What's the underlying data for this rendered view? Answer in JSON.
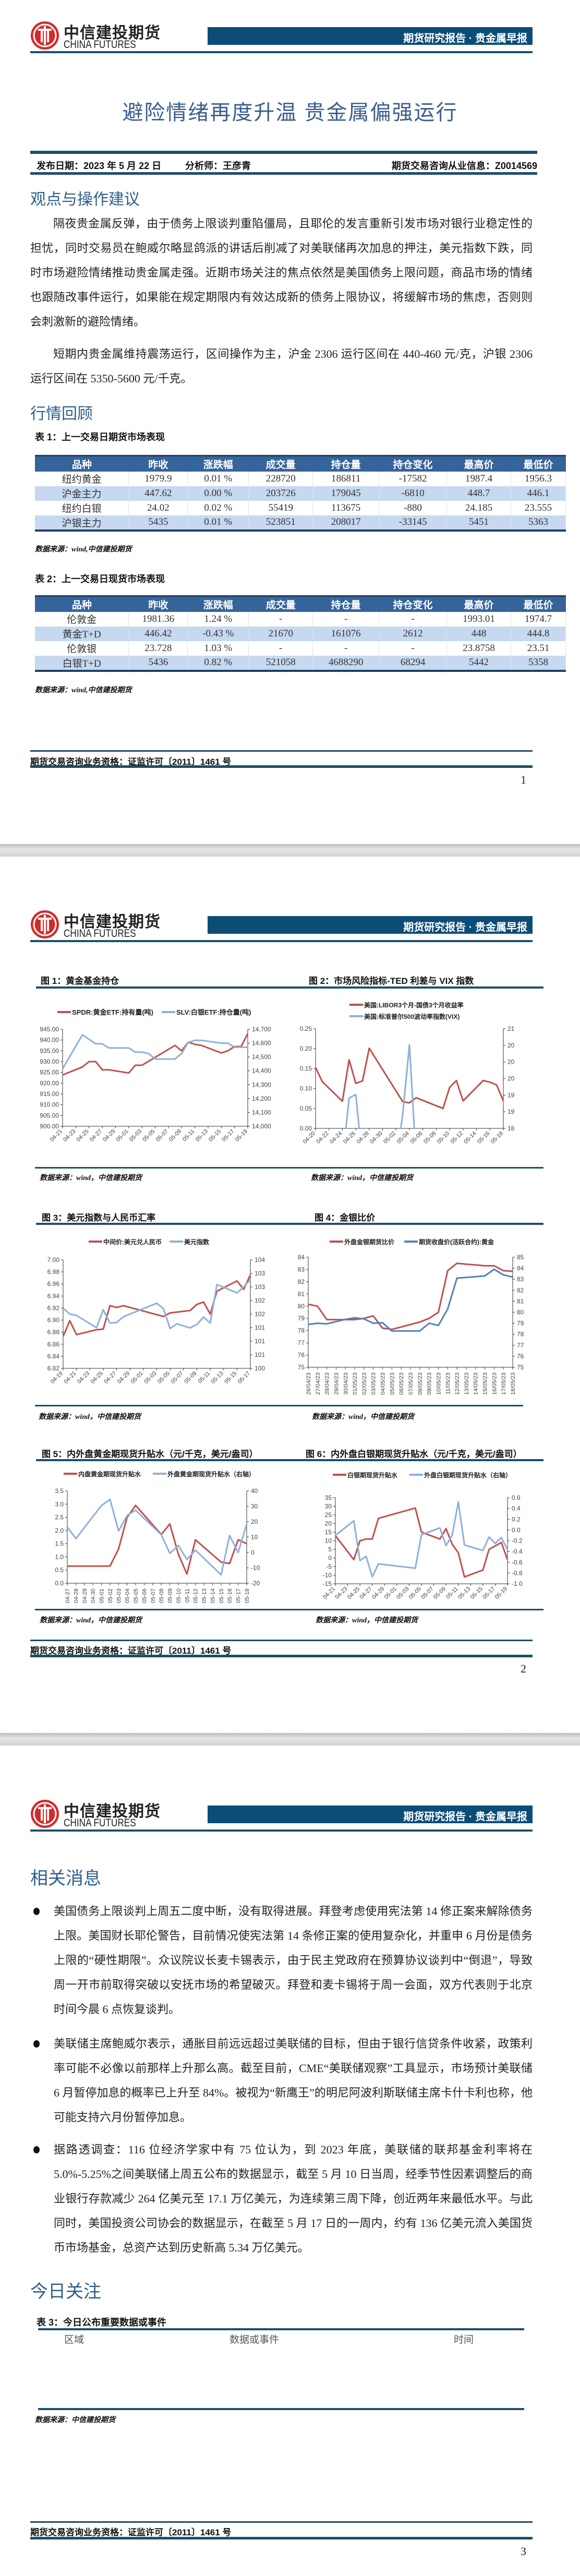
{
  "header": {
    "brand_cn": "中信建投期货",
    "brand_en": "CHINA FUTURES",
    "report_type": "期货研究报告 · 贵金属早报"
  },
  "report": {
    "title": "避险情绪再度升温  贵金属偏强运行",
    "publish_date": "发布日期：2023 年 5 月 22 日",
    "analyst": "分析师：王彦青",
    "license": "期货交易咨询从业信息：Z0014569"
  },
  "view": {
    "heading": "观点与操作建议",
    "paragraphs": [
      "隔夜贵金属反弹，由于债务上限谈判重陷僵局，且耶伦的发言重新引发市场对银行业稳定性的担忧，同时交易员在鲍威尔略显鸽派的讲话后削减了对美联储再次加息的押注，美元指数下跌，同时市场避险情绪推动贵金属走强。近期市场关注的焦点依然是美国债务上限问题，商品市场的情绪也跟随改事件运行，如果能在规定期限内有效达成新的债务上限协议，将缓解市场的焦虑，否则则会刺激新的避险情绪。",
      "短期内贵金属维持震荡运行，区间操作为主，沪金 2306 运行区间在 440-460 元/克，沪银 2306 运行区间在 5350-5600 元/千克。"
    ]
  },
  "market": {
    "heading": "行情回顾",
    "table1": {
      "caption": "表 1：上一交易日期货市场表现",
      "columns": [
        "品种",
        "昨收",
        "涨跌幅",
        "成交量",
        "持仓量",
        "持仓变化",
        "最高价",
        "最低价"
      ],
      "rows": [
        [
          "纽约黄金",
          "1979.9",
          "0.01 %",
          "228720",
          "186811",
          "-17582",
          "1987.4",
          "1956.3"
        ],
        [
          "沪金主力",
          "447.62",
          "0.00 %",
          "203726",
          "179045",
          "-6810",
          "448.7",
          "446.1"
        ],
        [
          "纽约白银",
          "24.02",
          "0.02 %",
          "55419",
          "113675",
          "-880",
          "24.185",
          "23.555"
        ],
        [
          "沪银主力",
          "5435",
          "0.01 %",
          "523851",
          "208017",
          "-33145",
          "5451",
          "5363"
        ]
      ],
      "source": "数据来源：wind,中信建投期货"
    },
    "table2": {
      "caption": "表 2：上一交易日现货市场表现",
      "columns": [
        "品种",
        "昨收",
        "涨跌幅",
        "成交量",
        "持仓量",
        "持仓变化",
        "最高价",
        "最低价"
      ],
      "rows": [
        [
          "伦敦金",
          "1981.36",
          "1.24 %",
          "-",
          "-",
          "-",
          "1993.01",
          "1974.7"
        ],
        [
          "黄金T+D",
          "446.42",
          "-0.43 %",
          "21670",
          "161076",
          "2612",
          "448",
          "444.8"
        ],
        [
          "伦敦银",
          "23.728",
          "1.03 %",
          "-",
          "-",
          "-",
          "23.8758",
          "23.51"
        ],
        [
          "白银T+D",
          "5436",
          "0.82 %",
          "521058",
          "4688290",
          "68294",
          "5442",
          "5358"
        ]
      ],
      "source": "数据来源：wind,中信建投期货"
    }
  },
  "footer": {
    "qualification": "期货交易咨询业务资格：证监许可〔2011〕1461 号",
    "pages": [
      "1",
      "2",
      "3"
    ]
  },
  "figures_source": "数据来源：wind，中信建投期货",
  "colors": {
    "red": "#c0504d",
    "blue": "#8eb0da",
    "blue_dark": "#4f81bd",
    "navy": "#0c4d78"
  },
  "chart_data": [
    {
      "type": "line",
      "title": "图 1：黄金基金持仓",
      "x_ticks": [
        "04-21",
        "04-23",
        "04-25",
        "04-27",
        "04-29",
        "05-01",
        "05-03",
        "05-05",
        "05-07",
        "05-09",
        "05-11",
        "05-13",
        "05-15",
        "05-17",
        "05-19"
      ],
      "y_left": {
        "range": [
          900,
          945
        ],
        "labels": [
          "900.00",
          "905.00",
          "910.00",
          "915.00",
          "920.00",
          "925.00",
          "930.00",
          "935.00",
          "940.00",
          "945.00"
        ]
      },
      "y_right": {
        "range": [
          14000,
          14700
        ],
        "labels": [
          "14,000",
          "14,100",
          "14,200",
          "14,300",
          "14,400",
          "14,500",
          "14,600",
          "14,700"
        ]
      },
      "series": [
        {
          "name": "SPDR:黄金ETF:持有量(吨)",
          "axis": "left",
          "color": "#c0504d",
          "x": [
            "04-21",
            "04-24",
            "04-25",
            "04-26",
            "04-27",
            "04-28",
            "05-01",
            "05-02",
            "05-03",
            "05-08",
            "05-09",
            "05-10",
            "05-11",
            "05-12",
            "05-15",
            "05-16",
            "05-17",
            "05-18",
            "05-19"
          ],
          "y": [
            923.8,
            927.5,
            930,
            930,
            926.2,
            926.2,
            924.7,
            928.3,
            928.3,
            937.5,
            935,
            939,
            938,
            937.5,
            934,
            935,
            937,
            937,
            943
          ]
        },
        {
          "name": "SLV:白银ETF:持仓量(吨)",
          "axis": "right",
          "color": "#8eb0da",
          "x": [
            "04-21",
            "04-24",
            "04-26",
            "04-27",
            "04-28",
            "05-01",
            "05-02",
            "05-03",
            "05-04",
            "05-05",
            "05-08",
            "05-09",
            "05-10",
            "05-11",
            "05-12",
            "05-15",
            "05-16",
            "05-17",
            "05-19"
          ],
          "y": [
            14415,
            14660,
            14595,
            14595,
            14565,
            14565,
            14535,
            14535,
            14525,
            14485,
            14485,
            14525,
            14605,
            14620,
            14620,
            14600,
            14600,
            14570,
            14570
          ]
        }
      ]
    },
    {
      "type": "line",
      "title": "图 2：市场风险指标-TED 利差与 VIX 指数",
      "x_ticks": [
        "04-20",
        "04-22",
        "04-24",
        "04-26",
        "04-28",
        "04-30",
        "05-02",
        "05-04",
        "05-06",
        "05-08",
        "05-10",
        "05-12",
        "05-14",
        "05-16",
        "05-18"
      ],
      "y_left": {
        "range": [
          0,
          0.25
        ],
        "labels": [
          "0.00",
          "0.05",
          "0.10",
          "0.15",
          "0.20",
          "0.25"
        ]
      },
      "y_right": {
        "range": [
          18,
          21
        ],
        "labels": [
          "18",
          "19",
          "19",
          "20",
          "20",
          "20",
          "21"
        ]
      },
      "series": [
        {
          "name": "美国:LIBOR3个月-国债3个月收益率",
          "axis": "left",
          "color": "#c0504d",
          "x": [
            "04-20",
            "04-21",
            "04-24",
            "04-25",
            "04-26",
            "04-27",
            "04-28",
            "05-03",
            "05-04",
            "05-05",
            "05-09",
            "05-10",
            "05-11",
            "05-12",
            "05-15",
            "05-16",
            "05-17",
            "05-18"
          ],
          "y": [
            0.153,
            0.117,
            0.068,
            0.172,
            0.113,
            0.119,
            0.201,
            0.067,
            0.064,
            0.077,
            0.05,
            0.103,
            0.12,
            0.069,
            0.12,
            0.116,
            0.109,
            0.069
          ]
        },
        {
          "name": "美国:标准普尔500波动率指数(VIX)",
          "axis": "right",
          "color": "#8eb0da",
          "x": [
            "04-24",
            "04-25",
            "04-26",
            "04-27",
            "05-02",
            "05-03",
            "05-04",
            "05-05"
          ],
          "y": [
            17,
            18.91,
            19.02,
            17,
            17,
            18.42,
            20.52,
            17
          ]
        }
      ]
    },
    {
      "type": "line",
      "title": "图 3：美元指数与人民币汇率",
      "x_ticks": [
        "04-19",
        "04-21",
        "04-23",
        "04-25",
        "04-27",
        "04-29",
        "05-01",
        "05-03",
        "05-05",
        "05-07",
        "05-09",
        "05-11",
        "05-13",
        "05-15",
        "05-17"
      ],
      "y_left": {
        "range": [
          6.82,
          7.0
        ],
        "labels": [
          "6.82",
          "6.84",
          "6.86",
          "6.88",
          "6.90",
          "6.92",
          "6.94",
          "6.96",
          "6.98",
          "7.00"
        ]
      },
      "y_right": {
        "range": [
          100,
          104
        ],
        "labels": [
          "100",
          "101",
          "101",
          "101",
          "102",
          "102",
          "103",
          "103",
          "104"
        ]
      },
      "series": [
        {
          "name": "中间价:美元兑人民币",
          "axis": "left",
          "color": "#c0504d",
          "x": [
            "04-19",
            "04-20",
            "04-21",
            "04-24",
            "04-25",
            "04-26",
            "04-27",
            "04-28",
            "05-04",
            "05-05",
            "05-08",
            "05-09",
            "05-10",
            "05-11",
            "05-12",
            "05-15",
            "05-16",
            "05-17"
          ],
          "y": [
            6.873,
            6.899,
            6.876,
            6.884,
            6.885,
            6.924,
            6.921,
            6.924,
            6.906,
            6.912,
            6.916,
            6.926,
            6.93,
            6.91,
            6.948,
            6.965,
            6.951,
            6.975
          ]
        },
        {
          "name": "美元指数",
          "axis": "right",
          "color": "#8eb0da",
          "x": [
            "04-19",
            "04-20",
            "04-21",
            "04-24",
            "04-25",
            "04-26",
            "04-27",
            "04-28",
            "05-03",
            "05-04",
            "05-05",
            "05-06",
            "05-08",
            "05-09",
            "05-10",
            "05-11",
            "05-12",
            "05-15",
            "05-16",
            "05-17"
          ],
          "y": [
            102.22,
            102.0,
            101.95,
            101.5,
            102.16,
            101.67,
            101.69,
            101.9,
            102.4,
            102.2,
            101.47,
            101.64,
            101.49,
            101.62,
            101.89,
            101.67,
            103.09,
            102.78,
            103.0,
            103.27
          ]
        }
      ]
    },
    {
      "type": "line",
      "title": "图 4：金银比价",
      "x_ticks": [
        "26/04/23",
        "27/04/23",
        "28/04/23",
        "29/04/23",
        "30/04/23",
        "01/05/23",
        "02/05/23",
        "03/05/23",
        "04/05/23",
        "05/05/23",
        "06/05/23",
        "07/05/23",
        "08/05/23",
        "09/05/23",
        "10/05/23",
        "11/05/23",
        "12/05/23",
        "13/05/23",
        "14/05/23",
        "15/05/23",
        "16/05/23",
        "17/05/23",
        "18/05/23"
      ],
      "y_left": {
        "range": [
          75,
          84
        ],
        "labels": [
          "75",
          "76",
          "77",
          "78",
          "79",
          "80",
          "81",
          "82",
          "83",
          "84"
        ]
      },
      "y_right": {
        "range": [
          75,
          85
        ],
        "labels": [
          "75",
          "76",
          "77",
          "78",
          "79",
          "80",
          "81",
          "82",
          "83",
          "84",
          "85"
        ]
      },
      "series": [
        {
          "name": "外盘金银期货比价",
          "axis": "left",
          "color": "#c0504d",
          "x": [
            "26/04/23",
            "27/04/23",
            "28/04/23",
            "01/05/23",
            "02/05/23",
            "03/05/23",
            "04/05/23",
            "05/05/23",
            "08/05/23",
            "09/05/23",
            "10/05/23",
            "11/05/23",
            "12/05/23",
            "15/05/23",
            "16/05/23",
            "17/05/23",
            "18/05/23"
          ],
          "y": [
            80.15,
            80.0,
            78.9,
            78.9,
            79.0,
            79.2,
            78.2,
            78.1,
            78.7,
            79.0,
            79.5,
            82.9,
            83.5,
            83.3,
            83.3,
            82.9,
            82.85
          ]
        },
        {
          "name": "期货收盘价(活跃合约):黄金",
          "axis": "right",
          "color": "#4f81bd",
          "x": [
            "26/04/23",
            "27/04/23",
            "28/04/23",
            "29/04/23",
            "30/04/23",
            "01/05/23",
            "02/05/23",
            "03/05/23",
            "04/05/23",
            "05/05/23",
            "08/05/23",
            "09/05/23",
            "10/05/23",
            "11/05/23",
            "12/05/23",
            "15/05/23",
            "16/05/23",
            "17/05/23",
            "18/05/23"
          ],
          "y": [
            78.9,
            79.0,
            78.95,
            79.15,
            79.35,
            79.5,
            79.4,
            79.0,
            79.05,
            78.3,
            78.3,
            79.0,
            78.8,
            80.3,
            83.1,
            83.3,
            83.9,
            83.4,
            83.2
          ]
        }
      ]
    },
    {
      "type": "line",
      "title": "图 5：内外盘黄金期现货升贴水（元/千克，美元/盎司）",
      "x_ticks": [
        "04-27",
        "04-28",
        "04-29",
        "04-30",
        "05-01",
        "05-02",
        "05-03",
        "05-04",
        "05-05",
        "05-06",
        "05-07",
        "05-08",
        "05-09",
        "05-10",
        "05-11",
        "05-12",
        "05-13",
        "05-14",
        "05-15",
        "05-16",
        "05-17",
        "05-18"
      ],
      "y_left": {
        "range": [
          0,
          3.5
        ],
        "labels": [
          "0.0",
          "0.5",
          "1.0",
          "1.5",
          "2.0",
          "2.5",
          "3.0",
          "3.5"
        ]
      },
      "y_right": {
        "range": [
          -20,
          40
        ],
        "labels": [
          "-20",
          "-10",
          "0",
          "10",
          "20",
          "30",
          "40"
        ]
      },
      "series": [
        {
          "name": "内盘黄金期现货升贴水",
          "axis": "left",
          "color": "#c0504d",
          "x": [
            "04-27",
            "05-02",
            "05-03",
            "05-04",
            "05-05",
            "05-08",
            "05-09",
            "05-10",
            "05-11",
            "05-12",
            "05-15",
            "05-16",
            "05-17",
            "05-18"
          ],
          "y": [
            0.65,
            0.65,
            1.3,
            2.5,
            2.95,
            1.85,
            2.25,
            1.1,
            0.35,
            1.65,
            0.8,
            0.75,
            1.65,
            1.5
          ]
        },
        {
          "name": "外盘黄金期现货升贴水（右轴）",
          "axis": "right",
          "color": "#8eb0da",
          "x": [
            "04-27",
            "04-28",
            "05-01",
            "05-02",
            "05-03",
            "05-04",
            "05-05",
            "05-08",
            "05-09",
            "05-10",
            "05-11",
            "05-12",
            "05-15",
            "05-16",
            "05-17",
            "05-18"
          ],
          "y": [
            16.5,
            9,
            30.5,
            34.5,
            14,
            24,
            27.5,
            11.5,
            -0.5,
            4.5,
            -4.5,
            1.5,
            -14.5,
            11,
            0,
            18.5
          ]
        }
      ]
    },
    {
      "type": "line",
      "title": "图 6：内外盘白银期现货升贴水（元/千克，美元/盎司）",
      "x_ticks": [
        "04-21",
        "04-23",
        "04-25",
        "04-27",
        "04-29",
        "05-01",
        "05-03",
        "05-05",
        "05-07",
        "05-09",
        "05-11",
        "05-13",
        "05-15",
        "05-17",
        "05-19"
      ],
      "y_left": {
        "range": [
          -15,
          35
        ],
        "labels": [
          "-15",
          "-10",
          "-5",
          "0",
          "5",
          "10",
          "15",
          "20",
          "25",
          "30",
          "35"
        ]
      },
      "y_right": {
        "range": [
          -1.0,
          0.6
        ],
        "labels": [
          "-1.0",
          "-0.8",
          "-0.6",
          "-0.4",
          "-0.2",
          "0.0",
          "0.2",
          "0.4",
          "0.6"
        ]
      },
      "series": [
        {
          "name": "白银期现货升贴水",
          "axis": "left",
          "color": "#c0504d",
          "x": [
            "04-21",
            "04-24",
            "04-25",
            "04-26",
            "04-27",
            "04-28",
            "05-04",
            "05-05",
            "05-08",
            "05-09",
            "05-10",
            "05-11",
            "05-12",
            "05-15",
            "05-16",
            "05-18",
            "05-19"
          ],
          "y": [
            13,
            -1,
            10,
            11,
            11,
            23,
            29,
            15,
            11,
            17,
            8,
            3,
            -11,
            -7,
            5,
            9,
            -1
          ]
        },
        {
          "name": "外盘白银期现货升贴水（右轴）",
          "axis": "right",
          "color": "#8eb0da",
          "x": [
            "04-21",
            "04-24",
            "04-25",
            "04-26",
            "04-27",
            "04-28",
            "05-04",
            "05-05",
            "05-08",
            "05-09",
            "05-10",
            "05-11",
            "05-12",
            "05-15",
            "05-16",
            "05-17",
            "05-18",
            "05-19"
          ],
          "y": [
            -0.1,
            0.17,
            -0.57,
            -0.49,
            -0.87,
            -0.63,
            -0.71,
            -0.09,
            0.04,
            -0.29,
            -0.1,
            0.52,
            -0.28,
            -0.38,
            -0.13,
            -0.25,
            -0.14,
            -0.37
          ]
        }
      ]
    }
  ],
  "news": {
    "heading": "相关消息",
    "items": [
      "美国债务上限谈判上周五二度中断，没有取得进展。拜登考虑使用宪法第 14 修正案来解除债务上限。美国财长耶伦警告，目前情况使宪法第 14 条修正案的使用复杂化，并重申 6 月份是债务上限的“硬性期限”。众议院议长麦卡锡表示，由于民主党政府在预算协议谈判中“倒退”，导致周一开市前取得突破以安抚市场的希望破灭。拜登和麦卡锡将于周一会面，双方代表则于北京时间今晨 6 点恢复谈判。",
      "美联储主席鲍威尔表示，通胀目前远远超过美联储的目标，但由于银行信贷条件收紧，政策利率可能不必像以前那样上升那么高。截至目前，CME“美联储观察”工具显示，市场预计美联储 6 月暂停加息的概率已上升至 84%。被视为“新鹰王”的明尼阿波利斯联储主席卡什卡利也称，他可能支持六月份暂停加息。",
      "据路透调查：116 位经济学家中有 75 位认为，到 2023 年底，美联储的联邦基金利率将在 5.0%-5.25%之间美联储上周五公布的数据显示，截至 5 月 10 日当周，经季节性因素调整后的商业银行存款减少 264 亿美元至 17.1 万亿美元，为连续第三周下降，创近两年来最低水平。与此同时，美国投资公司协会的数据显示，在截至 5 月 17 日的一周内，约有 136 亿美元流入美国货币市场基金，总资产达到历史新高 5.34 万亿美元。"
    ]
  },
  "today": {
    "heading": "今日关注",
    "caption": "表 3：今日公布重要数据或事件",
    "columns": [
      "区域",
      "数据或事件",
      "时间"
    ],
    "source": "数据来源：中信建投期货"
  }
}
